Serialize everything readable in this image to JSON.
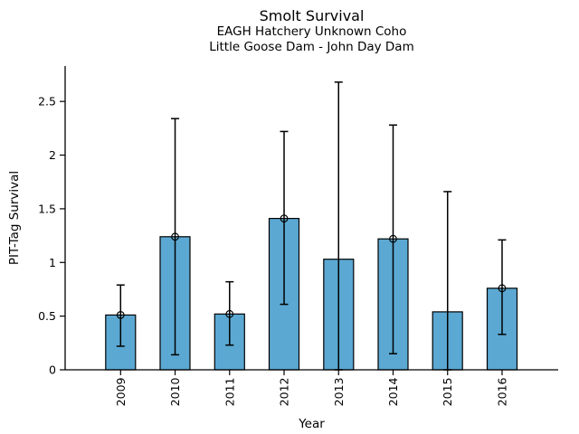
{
  "figure": {
    "background": "#ffffff"
  },
  "chart_data": {
    "type": "bar",
    "title": "Smolt Survival",
    "subtitle1": "EAGH Hatchery Unknown Coho",
    "subtitle2": "Little Goose Dam - John Day Dam",
    "xlabel": "Year",
    "ylabel": "PIT-Tag Survival",
    "categories": [
      "2009",
      "2010",
      "2011",
      "2012",
      "2013",
      "2014",
      "2015",
      "2016"
    ],
    "values": [
      0.51,
      1.24,
      0.52,
      1.41,
      1.03,
      1.22,
      0.54,
      0.76
    ],
    "error_low": [
      0.22,
      0.14,
      0.23,
      0.61,
      0.0,
      0.15,
      0.0,
      0.33
    ],
    "error_high": [
      0.79,
      2.34,
      0.82,
      2.22,
      2.68,
      2.28,
      1.66,
      1.21
    ],
    "point_markers": [
      true,
      true,
      true,
      true,
      false,
      true,
      false,
      true
    ],
    "yticks": [
      0,
      0.5,
      1,
      1.5,
      2,
      2.5
    ],
    "ytick_labels": [
      "0",
      "0.5",
      "1",
      "1.5",
      "2",
      "2.5"
    ],
    "ylim": [
      0,
      2.83
    ],
    "grid": false,
    "legend": "none",
    "marker": "open-circle",
    "bar_color": "#5BA8D2",
    "bar_edge_color": "#000000",
    "error_color": "#000000",
    "text_color": "#000000"
  }
}
